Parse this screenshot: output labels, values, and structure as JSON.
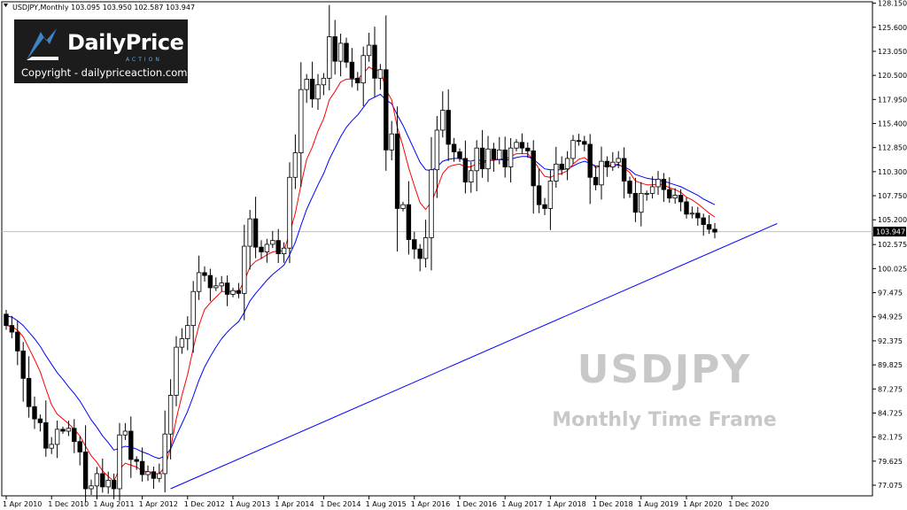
{
  "header": {
    "text": "USDJPY,Monthly  103.095 103.950 102.587 103.947"
  },
  "logo": {
    "brand_a": "Daily",
    "brand_b": "Price",
    "sub": "ACTION",
    "copyright": "Copyright - dailypriceaction.com"
  },
  "watermark": {
    "symbol": "USDJPY",
    "subtitle": "Monthly Time Frame"
  },
  "colors": {
    "bull": "#ffffff",
    "bear": "#000000",
    "ema_fast": "#ff0000",
    "ema_slow": "#0000ff",
    "trendline": "#0000ff",
    "price_tag_bg": "#000000"
  },
  "chart_data": {
    "type": "candlestick",
    "symbol": "USDJPY",
    "timeframe": "Monthly",
    "ylim": [
      75.95,
      128.3
    ],
    "y_ticks": [
      "128.150",
      "125.600",
      "123.050",
      "120.500",
      "117.950",
      "115.400",
      "112.850",
      "110.300",
      "107.750",
      "105.200",
      "102.575",
      "100.025",
      "97.475",
      "94.925",
      "92.375",
      "89.825",
      "87.275",
      "84.725",
      "82.175",
      "79.625",
      "77.075"
    ],
    "x_ticks": [
      "1 Apr 2010",
      "1 Dec 2010",
      "1 Aug 2011",
      "1 Apr 2012",
      "1 Dec 2012",
      "1 Aug 2013",
      "1 Apr 2014",
      "1 Dec 2014",
      "1 Aug 2015",
      "1 Apr 2016",
      "1 Dec 2016",
      "1 Aug 2017",
      "1 Apr 2018",
      "1 Dec 2018",
      "1 Aug 2019",
      "1 Apr 2020",
      "1 Dec 2020"
    ],
    "current_price": "103.947",
    "current_price_value": 103.947,
    "closes": [
      94.0,
      93.3,
      91.3,
      88.4,
      85.4,
      84.1,
      83.7,
      81.0,
      81.4,
      83.0,
      82.8,
      83.1,
      81.7,
      80.6,
      76.7,
      77.0,
      78.3,
      76.9,
      77.6,
      76.7,
      82.4,
      82.8,
      79.8,
      79.6,
      78.2,
      78.5,
      77.8,
      78.3,
      82.5,
      86.6,
      91.7,
      92.6,
      94.0,
      97.6,
      99.6,
      99.3,
      98.0,
      98.2,
      98.5,
      97.3,
      97.7,
      97.4,
      102.4,
      105.3,
      102.3,
      101.8,
      102.6,
      103.0,
      101.6,
      102.2,
      109.7,
      112.3,
      119.0,
      120.1,
      118.0,
      119.5,
      120.2,
      124.6,
      122.0,
      123.9,
      121.9,
      120.2,
      119.7,
      122.6,
      123.7,
      120.2,
      121.1,
      112.6,
      114.3,
      106.4,
      106.8,
      103.1,
      102.1,
      101.1,
      103.3,
      110.5,
      114.7,
      116.8,
      113.2,
      112.4,
      111.7,
      109.2,
      110.4,
      112.8,
      110.6,
      112.7,
      111.6,
      112.6,
      110.8,
      112.8,
      113.4,
      112.8,
      112.5,
      108.8,
      106.8,
      106.4,
      109.3,
      111.1,
      110.6,
      111.7,
      113.6,
      113.5,
      113.2,
      109.7,
      108.9,
      111.4,
      110.8,
      111.3,
      111.7,
      109.3,
      108.0,
      106.0,
      108.0,
      108.0,
      108.7,
      109.5,
      108.4,
      107.5,
      107.8,
      107.1,
      105.8,
      105.9,
      105.4,
      104.7,
      104.2,
      103.9
    ],
    "ema_fast": [
      94.0,
      93.9,
      93.5,
      92.8,
      91.6,
      90.4,
      89.1,
      87.3,
      85.6,
      84.6,
      84.1,
      83.6,
      83.0,
      82.3,
      81.2,
      80.2,
      79.5,
      78.6,
      78.0,
      77.5,
      78.8,
      79.4,
      79.2,
      79.0,
      78.6,
      78.5,
      78.3,
      78.3,
      79.0,
      81.0,
      84.1,
      86.6,
      88.8,
      91.6,
      94.0,
      95.7,
      96.4,
      97.0,
      97.6,
      97.6,
      97.6,
      97.6,
      98.7,
      100.2,
      100.8,
      101.1,
      101.5,
      101.8,
      101.9,
      101.9,
      103.8,
      105.9,
      108.9,
      111.6,
      112.9,
      114.6,
      115.9,
      117.9,
      118.8,
      119.8,
      120.1,
      120.1,
      120.1,
      120.7,
      121.4,
      121.0,
      121.1,
      119.0,
      117.9,
      115.0,
      113.0,
      110.7,
      108.8,
      107.0,
      106.3,
      107.1,
      108.5,
      110.1,
      110.8,
      111.0,
      111.1,
      110.8,
      110.8,
      111.2,
      111.1,
      111.5,
      111.5,
      111.7,
      111.6,
      111.9,
      112.2,
      112.2,
      112.2,
      111.5,
      110.6,
      109.8,
      109.7,
      110.0,
      110.1,
      110.4,
      111.1,
      111.6,
      111.8,
      111.3,
      110.7,
      110.9,
      110.9,
      111.0,
      111.1,
      110.7,
      110.2,
      109.3,
      109.1,
      108.9,
      108.9,
      109.0,
      108.9,
      108.6,
      108.4,
      108.1,
      107.6,
      107.3,
      106.9,
      106.4,
      105.9,
      105.5
    ],
    "ema_slow": [
      95.0,
      94.9,
      94.5,
      94.0,
      93.3,
      92.6,
      91.8,
      90.8,
      89.9,
      89.0,
      88.3,
      87.5,
      86.8,
      86.0,
      85.0,
      84.0,
      83.2,
      82.3,
      81.6,
      80.8,
      81.0,
      81.2,
      81.1,
      80.9,
      80.6,
      80.4,
      80.1,
      79.9,
      80.2,
      80.9,
      82.3,
      83.6,
      84.9,
      86.5,
      88.2,
      89.6,
      90.7,
      91.7,
      92.6,
      93.3,
      93.9,
      94.4,
      95.4,
      96.6,
      97.4,
      98.1,
      98.8,
      99.4,
      99.9,
      100.4,
      101.5,
      102.8,
      104.6,
      106.3,
      107.6,
      108.9,
      110.1,
      111.6,
      112.8,
      114.0,
      115.0,
      115.7,
      116.3,
      117.1,
      117.9,
      118.2,
      118.5,
      117.9,
      117.5,
      116.3,
      115.2,
      113.9,
      112.6,
      111.3,
      110.5,
      110.4,
      110.8,
      111.4,
      111.6,
      111.7,
      111.7,
      111.5,
      111.4,
      111.6,
      111.4,
      111.5,
      111.5,
      111.6,
      111.5,
      111.6,
      111.8,
      111.9,
      111.9,
      111.6,
      111.1,
      110.6,
      110.5,
      110.5,
      110.5,
      110.6,
      110.9,
      111.2,
      111.4,
      111.2,
      110.9,
      110.9,
      110.9,
      110.9,
      111.0,
      110.8,
      110.5,
      110.0,
      109.8,
      109.6,
      109.5,
      109.4,
      109.3,
      109.1,
      108.9,
      108.7,
      108.4,
      108.1,
      107.8,
      107.4,
      107.1,
      106.8
    ],
    "trendline": {
      "from_index": 29,
      "from_price": 76.7,
      "to_index": 136,
      "to_price": 104.8
    }
  }
}
